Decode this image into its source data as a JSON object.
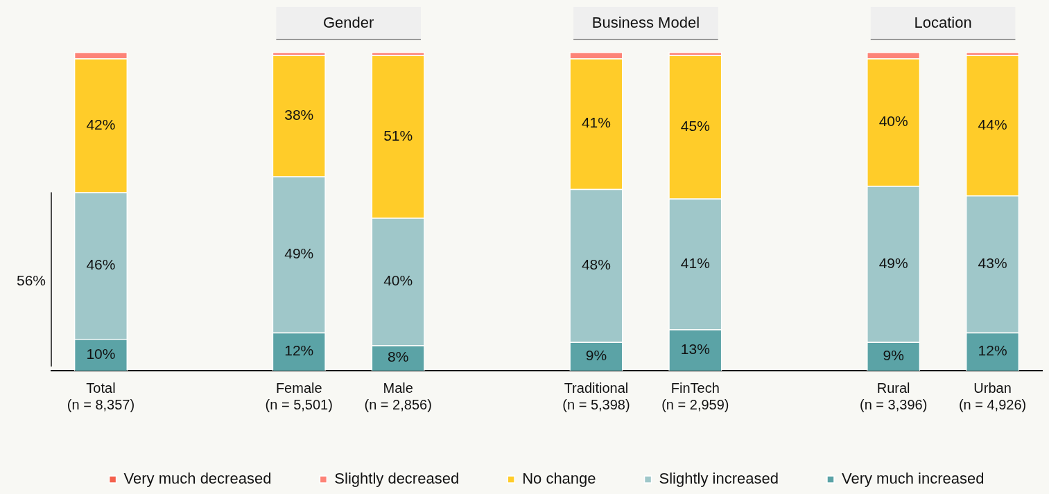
{
  "chart_data": {
    "type": "bar",
    "stacked": true,
    "categories": [
      "Total (n = 8,357)",
      null,
      "Female (n = 5,501)",
      "Male (n = 2,856)",
      null,
      "Traditional (n = 5,398)",
      "FinTech (n = 2,959)",
      null,
      "Rural (n = 3,396)",
      "Urban (n = 4,926)"
    ],
    "series": [
      {
        "name": "Very much increased",
        "color": "#5ba3a6",
        "values": [
          10,
          null,
          12,
          8,
          null,
          9,
          13,
          null,
          9,
          12
        ],
        "value_labels": [
          "10%",
          null,
          "12%",
          "8%",
          null,
          "9%",
          "13%",
          null,
          "9%",
          "12%"
        ]
      },
      {
        "name": "Slightly increased",
        "color": "#9fc7c9",
        "values": [
          46,
          null,
          49,
          40,
          null,
          48,
          41,
          null,
          49,
          43
        ],
        "value_labels": [
          "46%",
          null,
          "49%",
          "40%",
          null,
          "48%",
          "41%",
          null,
          "49%",
          "43%"
        ]
      },
      {
        "name": "No change",
        "color": "#ffcc29",
        "values": [
          42,
          null,
          38,
          51,
          null,
          41,
          45,
          null,
          40,
          44
        ],
        "value_labels": [
          "42%",
          null,
          "38%",
          "51%",
          null,
          "41%",
          "45%",
          null,
          "40%",
          "44%"
        ]
      },
      {
        "name": "Slightly decreased",
        "color": "#fd8377",
        "values": [
          2,
          null,
          1,
          1,
          null,
          2,
          1,
          null,
          2,
          1
        ]
      },
      {
        "name": "Very much decreased",
        "color": "#f4614d",
        "values": [
          0,
          null,
          0,
          0,
          null,
          0,
          0,
          null,
          0,
          0
        ]
      }
    ],
    "annotations": [
      "56%",
      "Gender",
      "Business Model",
      "Location"
    ],
    "legend": "bottom",
    "grid": false
  }
}
